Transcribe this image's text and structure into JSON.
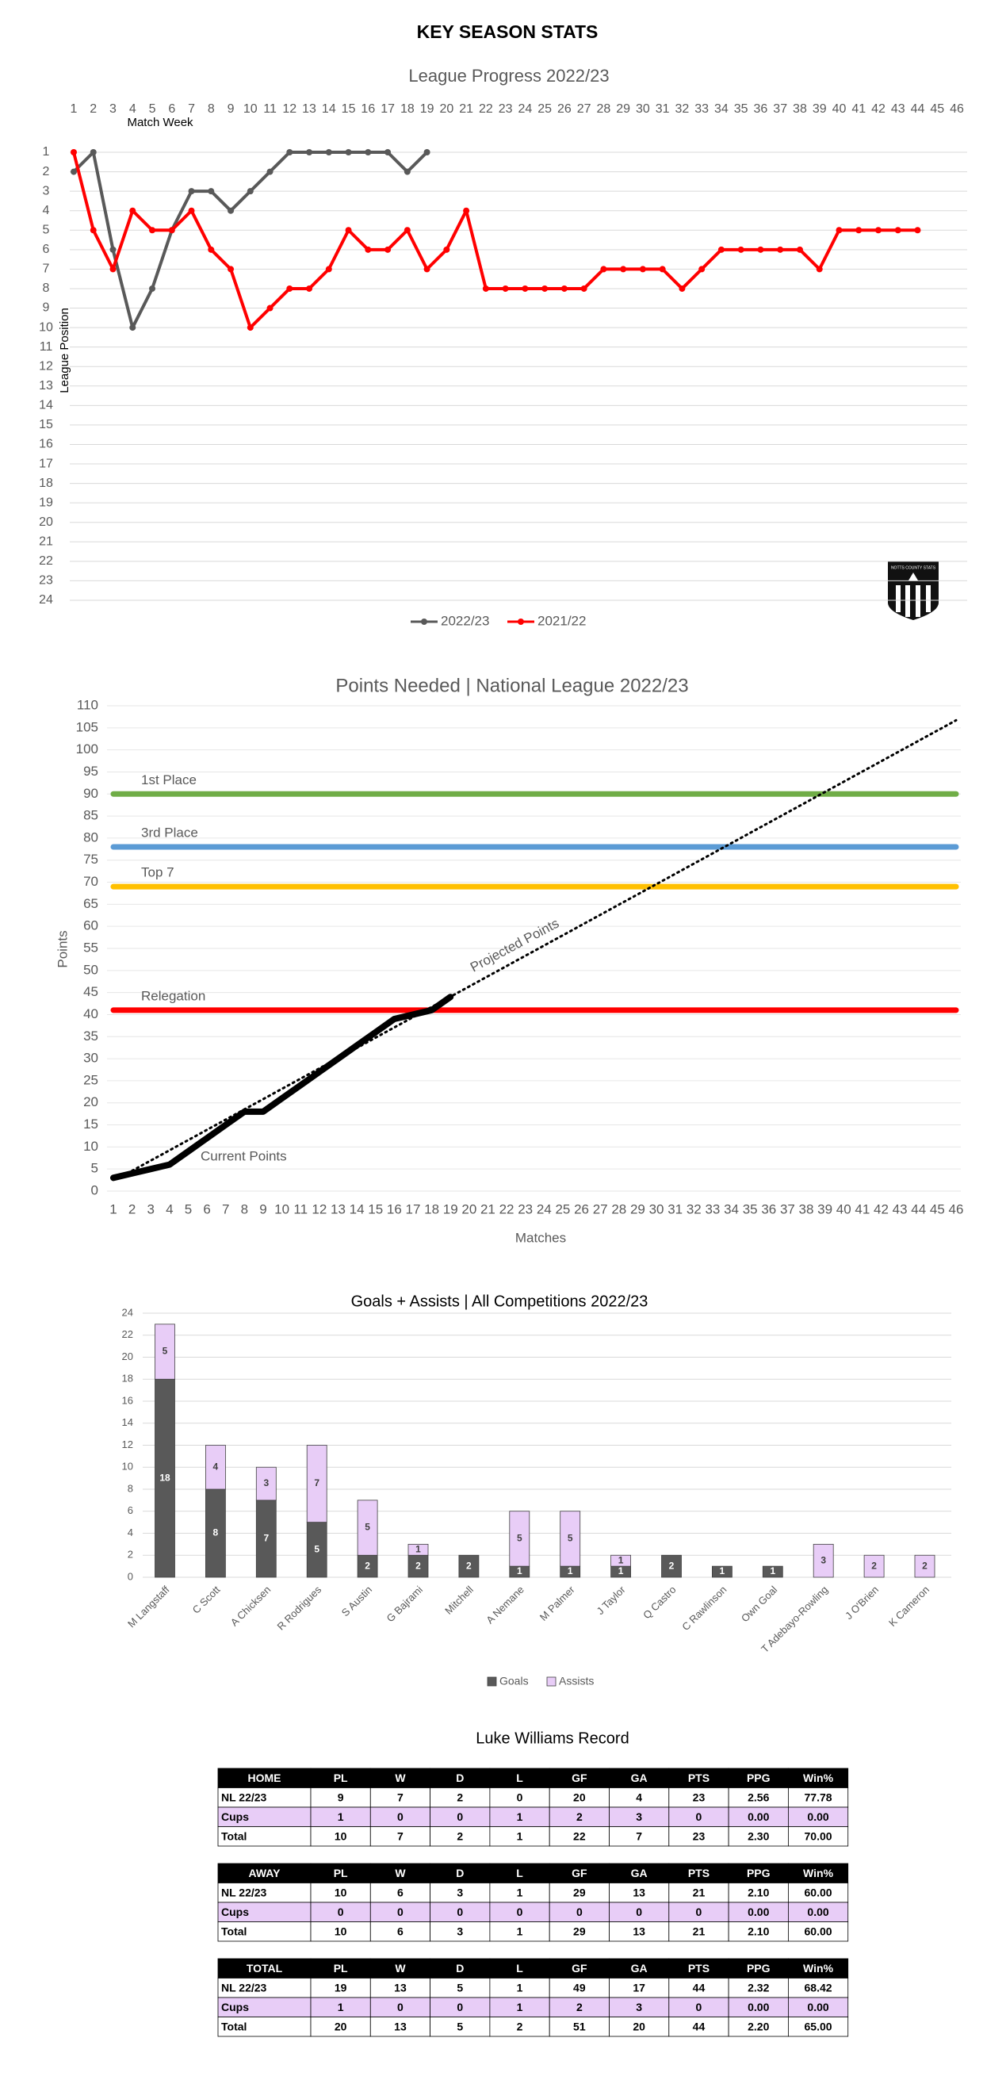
{
  "title": "KEY SEASON STATS",
  "chart_data": [
    {
      "type": "line",
      "title": "League Progress 2022/23",
      "x_label": "Match Week",
      "y_label": "League Position",
      "x": [
        1,
        2,
        3,
        4,
        5,
        6,
        7,
        8,
        9,
        10,
        11,
        12,
        13,
        14,
        15,
        16,
        17,
        18,
        19,
        20,
        21,
        22,
        23,
        24,
        25,
        26,
        27,
        28,
        29,
        30,
        31,
        32,
        33,
        34,
        35,
        36,
        37,
        38,
        39,
        40,
        41,
        42,
        43,
        44,
        45,
        46
      ],
      "xlim": [
        1,
        46
      ],
      "xticks": [
        1,
        2,
        3,
        4,
        5,
        6,
        7,
        8,
        9,
        10,
        11,
        12,
        13,
        14,
        15,
        16,
        17,
        18,
        19,
        20,
        21,
        22,
        23,
        24,
        25,
        26,
        27,
        28,
        29,
        30,
        31,
        32,
        33,
        34,
        35,
        36,
        37,
        38,
        39,
        40,
        41,
        42,
        43,
        44,
        45,
        46
      ],
      "ylim": [
        1,
        24
      ],
      "yticks": [
        1,
        2,
        3,
        4,
        5,
        6,
        7,
        8,
        9,
        10,
        11,
        12,
        13,
        14,
        15,
        16,
        17,
        18,
        19,
        20,
        21,
        22,
        23,
        24
      ],
      "y_reversed": true,
      "x_axis_position": "top",
      "grid": true,
      "legend": "bottom",
      "logo_text": "NOTTS COUNTY STATS",
      "series": [
        {
          "name": "2022/23",
          "color": "#595959",
          "values": [
            2,
            1,
            6,
            10,
            8,
            5,
            3,
            3,
            4,
            3,
            2,
            1,
            1,
            1,
            1,
            1,
            1,
            2,
            1,
            null,
            null,
            null,
            null,
            null,
            null,
            null,
            null,
            null,
            null,
            null,
            null,
            null,
            null,
            null,
            null,
            null,
            null,
            null,
            null,
            null,
            null,
            null,
            null,
            null,
            null,
            null
          ]
        },
        {
          "name": "2021/22",
          "color": "#ff0000",
          "values": [
            1,
            5,
            7,
            4,
            5,
            5,
            4,
            6,
            7,
            10,
            9,
            8,
            8,
            7,
            5,
            6,
            6,
            5,
            7,
            6,
            4,
            8,
            8,
            8,
            8,
            8,
            8,
            7,
            7,
            7,
            7,
            8,
            7,
            6,
            6,
            6,
            6,
            6,
            7,
            5,
            5,
            5,
            5,
            5,
            null,
            null
          ]
        }
      ]
    },
    {
      "type": "line",
      "title": "Points Needed | National League 2022/23",
      "x_label": "Matches",
      "y_label": "Points",
      "xlim": [
        1,
        46
      ],
      "xticks": [
        1,
        2,
        3,
        4,
        5,
        6,
        7,
        8,
        9,
        10,
        11,
        12,
        13,
        14,
        15,
        16,
        17,
        18,
        19,
        20,
        21,
        22,
        23,
        24,
        25,
        26,
        27,
        28,
        29,
        30,
        31,
        32,
        33,
        34,
        35,
        36,
        37,
        38,
        39,
        40,
        41,
        42,
        43,
        44,
        45,
        46
      ],
      "ylim": [
        0,
        110
      ],
      "yticks": [
        0,
        5,
        10,
        15,
        20,
        25,
        30,
        35,
        40,
        45,
        50,
        55,
        60,
        65,
        70,
        75,
        80,
        85,
        90,
        95,
        100,
        105,
        110
      ],
      "reference_lines": [
        {
          "label": "1st Place",
          "value": 90,
          "color": "#70ad47"
        },
        {
          "label": "3rd Place",
          "value": 78,
          "color": "#5b9bd5"
        },
        {
          "label": "Top 7",
          "value": 69,
          "color": "#ffc000"
        },
        {
          "label": "Relegation",
          "value": 41,
          "color": "#ff0000"
        }
      ],
      "series": [
        {
          "name": "Current Points",
          "color": "#000000",
          "x": [
            1,
            2,
            3,
            4,
            5,
            6,
            7,
            8,
            9,
            10,
            11,
            12,
            13,
            14,
            15,
            16,
            17,
            18,
            19
          ],
          "values": [
            3,
            4,
            5,
            6,
            9,
            12,
            15,
            18,
            18,
            21,
            24,
            27,
            30,
            33,
            36,
            39,
            40,
            41,
            44
          ]
        },
        {
          "name": "Projected Points",
          "color": "#000000",
          "style": "dotted",
          "x": [
            2,
            46
          ],
          "values": [
            4.6,
            106.7
          ]
        }
      ]
    },
    {
      "type": "bar",
      "stacked": true,
      "title": "Goals + Assists | All Competitions  2022/23",
      "categories": [
        "M Langstaff",
        "C Scott",
        "A Chicksen",
        "R Rodrigues",
        "S Austin",
        "G Bajrami",
        "Mitchell",
        "A Nemane",
        "M Palmer",
        "J Taylor",
        "Q Castro",
        "C Rawlinson",
        "Own Goal",
        "T Adebayo-Rowling",
        "J O'Brien",
        "K Cameron"
      ],
      "ylim": [
        0,
        24
      ],
      "yticks": [
        0,
        2,
        4,
        6,
        8,
        10,
        12,
        14,
        16,
        18,
        20,
        22,
        24
      ],
      "grid": true,
      "legend": "bottom",
      "series": [
        {
          "name": "Goals",
          "color": "#595959",
          "values": [
            18,
            8,
            7,
            5,
            2,
            2,
            2,
            1,
            1,
            1,
            2,
            1,
            1,
            0,
            0,
            0
          ]
        },
        {
          "name": "Assists",
          "color": "#e8cdf7",
          "values": [
            5,
            4,
            3,
            7,
            5,
            1,
            0,
            5,
            5,
            1,
            0,
            0,
            0,
            3,
            2,
            2
          ]
        }
      ]
    }
  ],
  "table_title": "Luke Williams Record",
  "tables": [
    {
      "header": [
        "HOME",
        "PL",
        "W",
        "D",
        "L",
        "GF",
        "GA",
        "PTS",
        "PPG",
        "Win%"
      ],
      "rows": [
        [
          "NL 22/23",
          "9",
          "7",
          "2",
          "0",
          "20",
          "4",
          "23",
          "2.56",
          "77.78"
        ],
        [
          "Cups",
          "1",
          "0",
          "0",
          "1",
          "2",
          "3",
          "0",
          "0.00",
          "0.00"
        ],
        [
          "Total",
          "10",
          "7",
          "2",
          "1",
          "22",
          "7",
          "23",
          "2.30",
          "70.00"
        ]
      ]
    },
    {
      "header": [
        "AWAY",
        "PL",
        "W",
        "D",
        "L",
        "GF",
        "GA",
        "PTS",
        "PPG",
        "Win%"
      ],
      "rows": [
        [
          "NL 22/23",
          "10",
          "6",
          "3",
          "1",
          "29",
          "13",
          "21",
          "2.10",
          "60.00"
        ],
        [
          "Cups",
          "0",
          "0",
          "0",
          "0",
          "0",
          "0",
          "0",
          "0.00",
          "0.00"
        ],
        [
          "Total",
          "10",
          "6",
          "3",
          "1",
          "29",
          "13",
          "21",
          "2.10",
          "60.00"
        ]
      ]
    },
    {
      "header": [
        "TOTAL",
        "PL",
        "W",
        "D",
        "L",
        "GF",
        "GA",
        "PTS",
        "PPG",
        "Win%"
      ],
      "rows": [
        [
          "NL 22/23",
          "19",
          "13",
          "5",
          "1",
          "49",
          "17",
          "44",
          "2.32",
          "68.42"
        ],
        [
          "Cups",
          "1",
          "0",
          "0",
          "1",
          "2",
          "3",
          "0",
          "0.00",
          "0.00"
        ],
        [
          "Total",
          "20",
          "13",
          "5",
          "2",
          "51",
          "20",
          "44",
          "2.20",
          "65.00"
        ]
      ]
    }
  ]
}
